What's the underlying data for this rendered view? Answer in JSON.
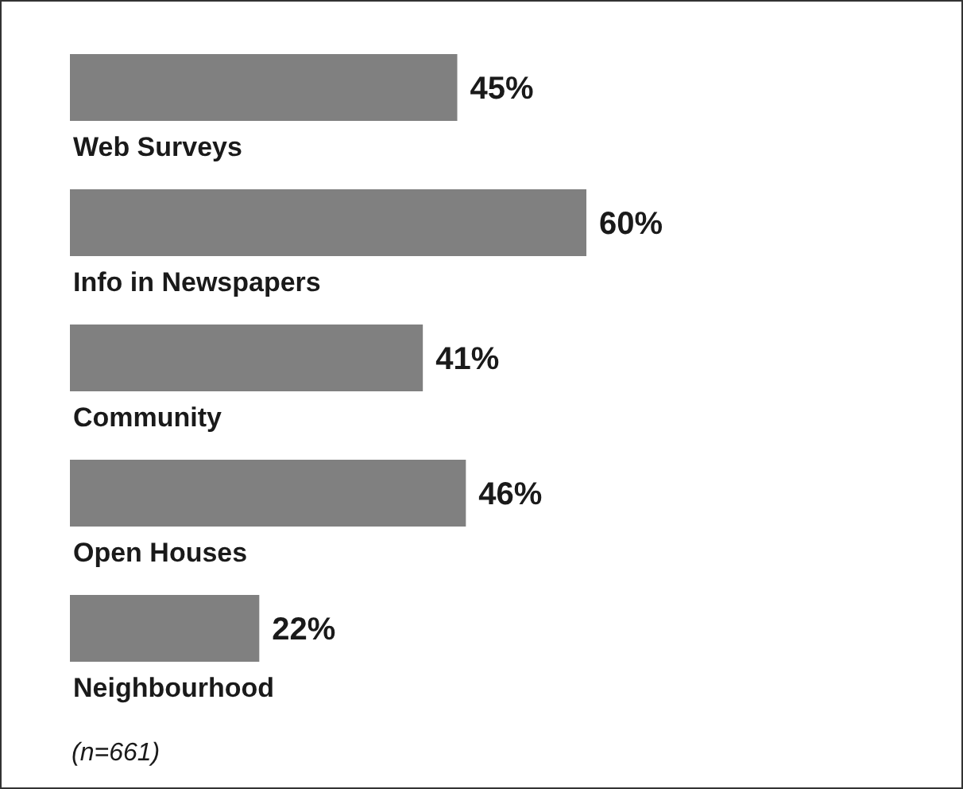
{
  "chart_data": {
    "type": "bar",
    "orientation": "horizontal",
    "categories": [
      "Web Surveys",
      "Info in Newspapers",
      "Community",
      "Open Houses",
      "Neighbourhood"
    ],
    "values": [
      45,
      60,
      41,
      46,
      22
    ],
    "value_labels": [
      "45%",
      "60%",
      "41%",
      "46%",
      "22%"
    ],
    "color": "#808080",
    "tick_labels": "y",
    "grid": false,
    "legend": false,
    "annotations": [
      "(n=661)"
    ]
  }
}
